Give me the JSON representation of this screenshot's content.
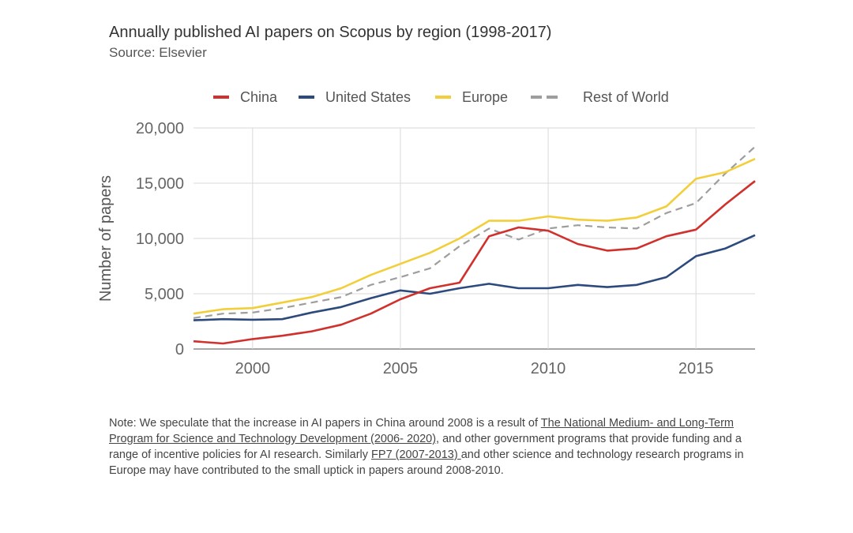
{
  "chart_data": {
    "type": "line",
    "title": "Annually published AI papers on Scopus by region (1998-2017)",
    "subtitle": "Source: Elsevier",
    "ylabel": "Number of papers",
    "xlabel": "",
    "xlim": [
      1998,
      2017
    ],
    "ylim": [
      0,
      20000
    ],
    "x_ticks": [
      2000,
      2005,
      2010,
      2015
    ],
    "x_tick_labels": [
      "2000",
      "2005",
      "2010",
      "2015"
    ],
    "y_ticks": [
      0,
      5000,
      10000,
      15000,
      20000
    ],
    "y_tick_labels": [
      "0",
      "5,000",
      "10,000",
      "15,000",
      "20,000"
    ],
    "grid": true,
    "legend_position": "top",
    "x": [
      1998,
      1999,
      2000,
      2001,
      2002,
      2003,
      2004,
      2005,
      2006,
      2007,
      2008,
      2009,
      2010,
      2011,
      2012,
      2013,
      2014,
      2015,
      2016,
      2017
    ],
    "series": [
      {
        "name": "China",
        "color": "#d0312d",
        "dash": false,
        "values": [
          700,
          500,
          900,
          1200,
          1600,
          2200,
          3200,
          4500,
          5500,
          6000,
          10200,
          11000,
          10700,
          9500,
          8900,
          9100,
          10200,
          10800,
          13100,
          15200
        ]
      },
      {
        "name": "United States",
        "color": "#2c4a7c",
        "dash": false,
        "values": [
          2600,
          2700,
          2650,
          2700,
          3300,
          3800,
          4600,
          5300,
          5000,
          5500,
          5900,
          5500,
          5500,
          5800,
          5600,
          5800,
          6500,
          8400,
          9100,
          10300
        ]
      },
      {
        "name": "Europe",
        "color": "#f2cf3a",
        "dash": false,
        "values": [
          3200,
          3600,
          3700,
          4200,
          4700,
          5500,
          6700,
          7700,
          8700,
          10000,
          11600,
          11600,
          12000,
          11700,
          11600,
          11900,
          12900,
          15400,
          16000,
          17200
        ]
      },
      {
        "name": "Rest of World",
        "color": "#9e9e9e",
        "dash": true,
        "values": [
          2800,
          3200,
          3300,
          3700,
          4200,
          4700,
          5800,
          6500,
          7300,
          9300,
          10900,
          9900,
          10900,
          11200,
          11000,
          10900,
          12300,
          13200,
          15900,
          18300
        ]
      }
    ]
  },
  "note": {
    "prefix": "Note: We speculate that the increase in AI papers in China around 2008 is a result of ",
    "link1": "The National Medium- and Long-Term Program for Science and Technology Development (2006- 2020)",
    "middle": ", and other government programs that provide funding and a range of incentive policies for AI research. Similarly ",
    "link2": "FP7 (2007-2013) ",
    "suffix": "and other science and technology research programs in Europe may have contributed to the small uptick in papers around 2008-2010."
  }
}
